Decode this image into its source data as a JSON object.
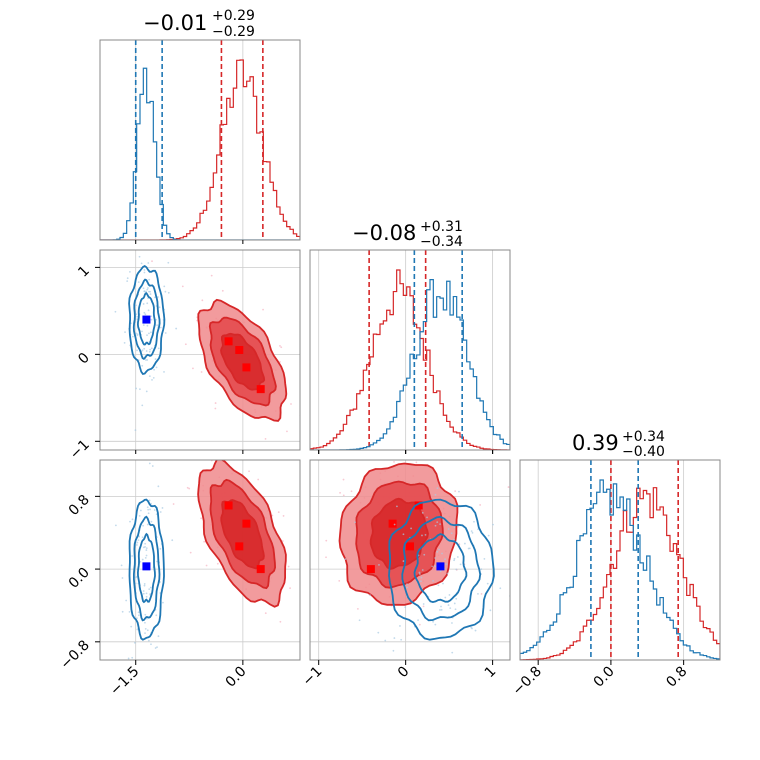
{
  "chart_data": {
    "type": "corner",
    "colors": {
      "red": "#d62728",
      "blue": "#1f77b4",
      "red_fill": "#f08a8c",
      "red_mid": "#e4474a",
      "grid": "#cccccc",
      "frame": "#888888"
    },
    "parameters": [
      {
        "range": [
          -2.0,
          0.8
        ],
        "ticks": [
          -1.5,
          0.0
        ],
        "tick_labels": [
          "−1.5",
          "0.0"
        ],
        "title": {
          "value": "−0.01",
          "plus": "+0.29",
          "minus": "−0.29"
        }
      },
      {
        "range": [
          -1.1,
          1.2
        ],
        "ticks": [
          -1,
          0,
          1
        ],
        "tick_labels": [
          "−1",
          "0",
          "1"
        ],
        "title": {
          "value": "−0.08",
          "plus": "+0.31",
          "minus": "−0.34"
        }
      },
      {
        "range": [
          -1.0,
          1.2
        ],
        "ticks": [
          -0.8,
          0.0,
          0.8
        ],
        "tick_labels": [
          "−0.8",
          "0.0",
          "0.8"
        ],
        "title": {
          "value": "0.39",
          "plus": "+0.34",
          "minus": "−0.40"
        }
      }
    ],
    "series": [
      {
        "name": "",
        "color": "red",
        "mean": [
          -0.01,
          -0.08,
          0.39
        ],
        "sd": [
          0.29,
          0.32,
          0.37
        ],
        "quantiles": [
          [
            -0.3,
            0.28
          ],
          [
            -0.42,
            0.23
          ],
          [
            0.0,
            0.74
          ]
        ],
        "markers": [
          [
            -0.2,
            0.15,
            0.7
          ],
          [
            -0.05,
            0.05,
            0.25
          ],
          [
            0.05,
            -0.15,
            0.5
          ],
          [
            0.25,
            -0.4,
            0.0
          ]
        ]
      },
      {
        "name": "",
        "color": "blue",
        "mean": [
          -1.35,
          0.4,
          0.0
        ],
        "sd": [
          0.12,
          0.3,
          0.38
        ],
        "quantiles": [
          [
            -1.5,
            -1.13
          ],
          [
            0.1,
            0.65
          ],
          [
            -0.22,
            0.3
          ]
        ],
        "markers": [
          [
            -1.35,
            0.4,
            0.03
          ]
        ]
      }
    ],
    "grid": true
  }
}
